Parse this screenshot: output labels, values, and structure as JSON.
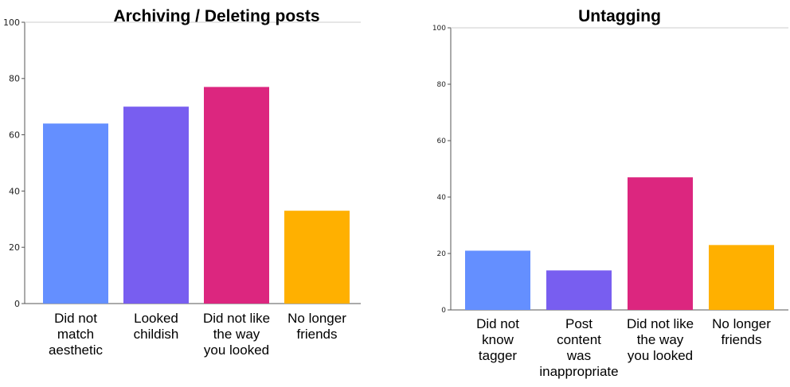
{
  "chart_data": [
    {
      "type": "bar",
      "title": "Archiving / Deleting posts",
      "categories": [
        [
          "Did not",
          "match",
          "aesthetic"
        ],
        [
          "Looked",
          "childish"
        ],
        [
          "Did not like",
          "the way",
          "you looked"
        ],
        [
          "No longer",
          "friends"
        ]
      ],
      "values": [
        64,
        70,
        77,
        33
      ],
      "colors": [
        "#648fff",
        "#785ef0",
        "#dc267f",
        "#ffb000"
      ],
      "ylim": [
        0,
        100
      ],
      "yticks": [
        "0",
        "20",
        "40",
        "60",
        "80",
        "100"
      ],
      "grid": false
    },
    {
      "type": "bar",
      "title": "Untagging",
      "categories": [
        [
          "Did not",
          "know",
          "tagger"
        ],
        [
          "Post",
          "content",
          "was",
          "inappropriate"
        ],
        [
          "Did not like",
          "the way",
          "you looked"
        ],
        [
          "No longer",
          "friends"
        ]
      ],
      "values": [
        21,
        14,
        47,
        23
      ],
      "colors": [
        "#648fff",
        "#785ef0",
        "#dc267f",
        "#ffb000"
      ],
      "ylim": [
        0,
        100
      ],
      "yticks": [
        "0",
        "20",
        "40",
        "60",
        "80",
        "100"
      ],
      "grid": false
    }
  ]
}
